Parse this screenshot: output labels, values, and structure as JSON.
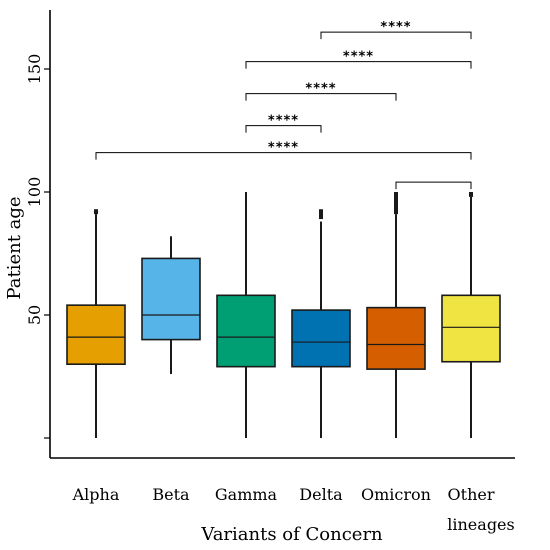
{
  "chart_data": {
    "type": "boxplot",
    "xlabel": "Variants of Concern",
    "ylabel": "Patient age",
    "ylim": [
      -7,
      175
    ],
    "yticks": [
      0,
      50,
      100,
      150
    ],
    "ytick_labels": [
      "",
      "50",
      "100",
      "150"
    ],
    "categories": [
      {
        "label": "Alpha",
        "label_lines": [
          "Alpha"
        ],
        "color": "#E69F00",
        "min": 0,
        "q1": 30,
        "median": 41,
        "q3": 54,
        "max": 91,
        "outliers": [
          [
            91,
            93
          ]
        ]
      },
      {
        "label": "Beta",
        "label_lines": [
          "Beta"
        ],
        "color": "#56B4E9",
        "min": 26,
        "q1": 40,
        "median": 50,
        "q3": 73,
        "max": 82,
        "outliers": []
      },
      {
        "label": "Gamma",
        "label_lines": [
          "Gamma"
        ],
        "color": "#009E73",
        "min": 0,
        "q1": 29,
        "median": 41,
        "q3": 58,
        "max": 100,
        "outliers": []
      },
      {
        "label": "Delta",
        "label_lines": [
          "Delta"
        ],
        "color": "#0072B2",
        "min": 0,
        "q1": 29,
        "median": 39,
        "q3": 52,
        "max": 88,
        "outliers": [
          [
            89,
            93
          ]
        ]
      },
      {
        "label": "Omicron",
        "label_lines": [
          "Omicron"
        ],
        "color": "#D55E00",
        "min": 0,
        "q1": 28,
        "median": 38,
        "q3": 53,
        "max": 91,
        "outliers": [
          [
            91,
            100
          ]
        ]
      },
      {
        "label": "Other lineages",
        "label_lines": [
          "Other",
          "lineages"
        ],
        "color": "#F0E442",
        "min": 0,
        "q1": 31,
        "median": 45,
        "q3": 58,
        "max": 98,
        "outliers": [
          [
            98,
            100
          ]
        ]
      }
    ],
    "significance": [
      {
        "from": "Gamma",
        "to": "Delta",
        "level": 127,
        "label": "****"
      },
      {
        "from": "Gamma",
        "to": "Omicron",
        "level": 140,
        "label": "****"
      },
      {
        "from": "Gamma",
        "to": "Other lineages",
        "level": 153,
        "label": "****"
      },
      {
        "from": "Delta",
        "to": "Other lineages",
        "level": 165,
        "label": "****"
      },
      {
        "from": "Alpha",
        "to": "Other lineages",
        "level": 116,
        "label": "****"
      },
      {
        "from": "Omicron",
        "to": "Other lineages",
        "level": 104,
        "label": ""
      }
    ]
  }
}
